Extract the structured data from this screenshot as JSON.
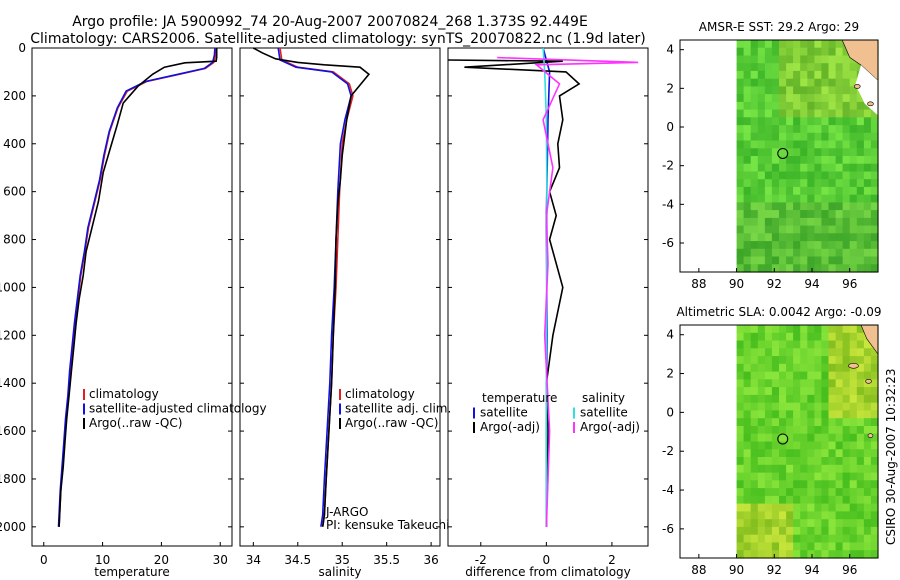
{
  "header": {
    "line1": "Argo profile: JA 5900992_74 20-Aug-2007 20070824_268 1.373S 92.449E",
    "line2": "Climatology: CARS2006. Satellite-adjusted climatology: synTS_20070822.nc (1.9d later)"
  },
  "credit": "CSIRO 30-Aug-2007 10:32:23",
  "colors": {
    "red": "#e02020",
    "blue": "#1010e0",
    "black": "#000000",
    "magenta": "#ff33ff",
    "cyan": "#33dddd"
  },
  "chart_data": [
    {
      "type": "line",
      "xlabel": "temperature",
      "ylabel": "",
      "xlim": [
        -2,
        32
      ],
      "ylim": [
        2080,
        0
      ],
      "xticks": [
        "0",
        "10",
        "20",
        "30"
      ],
      "yticks": [
        "0",
        "200",
        "400",
        "600",
        "800",
        "1000",
        "1200",
        "1400",
        "1600",
        "1800",
        "2000"
      ],
      "legend": [
        "climatology",
        "satellite-adjusted climatology",
        "Argo(..raw -QC)"
      ],
      "series": [
        {
          "name": "climatology",
          "color": "#e02020",
          "x": [
            29.3,
            29.2,
            28.9,
            27.5,
            23,
            17.5,
            14.2,
            12.6,
            11.2,
            10.3,
            9.6,
            8.6,
            7.6,
            7.0,
            6.3,
            5.8,
            5.3,
            4.9,
            4.5,
            4.2,
            3.8,
            3.5,
            3.2,
            2.9,
            2.6
          ],
          "y": [
            0,
            30,
            60,
            85,
            110,
            140,
            180,
            250,
            350,
            450,
            550,
            650,
            750,
            850,
            950,
            1050,
            1150,
            1250,
            1350,
            1450,
            1550,
            1650,
            1750,
            1850,
            2000
          ]
        },
        {
          "name": "satellite-adjusted climatology",
          "color": "#1010e0",
          "x": [
            29.1,
            29.0,
            28.7,
            27.3,
            22.8,
            17.3,
            14.0,
            12.5,
            11.1,
            10.2,
            9.5,
            8.5,
            7.5,
            6.9,
            6.2,
            5.7,
            5.2,
            4.8,
            4.4,
            4.1,
            3.7,
            3.4,
            3.1,
            2.8,
            2.5
          ],
          "y": [
            0,
            30,
            60,
            85,
            110,
            140,
            180,
            250,
            350,
            450,
            550,
            650,
            750,
            850,
            950,
            1050,
            1150,
            1250,
            1350,
            1450,
            1550,
            1650,
            1750,
            1850,
            2000
          ]
        },
        {
          "name": "Argo(..raw -QC)",
          "color": "#000000",
          "x": [
            29.4,
            29.4,
            29.3,
            24,
            20.5,
            18.5,
            16,
            13.5,
            12.5,
            11.3,
            10.1,
            9.3,
            8.2,
            7.2,
            6.7,
            6.0,
            5.5,
            5.1,
            4.7,
            4.3,
            3.9,
            3.6,
            3.3,
            2.9,
            2.6
          ],
          "y": [
            0,
            40,
            55,
            62,
            80,
            110,
            160,
            230,
            320,
            420,
            520,
            640,
            750,
            850,
            950,
            1050,
            1150,
            1250,
            1350,
            1450,
            1550,
            1650,
            1750,
            1850,
            2000
          ]
        }
      ]
    },
    {
      "type": "line",
      "xlabel": "salinity",
      "xlim": [
        33.85,
        36.1
      ],
      "ylim": [
        2080,
        0
      ],
      "xticks": [
        "34",
        "34.5",
        "35",
        "35.5",
        "36"
      ],
      "legend": [
        "climatology",
        "satellite adj. clim.",
        "Argo(..raw -QC)"
      ],
      "annotation": [
        "J-ARGO",
        "PI: kensuke Takeuchi"
      ],
      "series": [
        {
          "name": "climatology",
          "color": "#e02020",
          "x": [
            34.3,
            34.32,
            34.5,
            34.9,
            35.08,
            35.12,
            35.05,
            35.0,
            34.97,
            34.95,
            34.93,
            34.9,
            34.88,
            34.85,
            34.82,
            34.8,
            34.78
          ],
          "y": [
            0,
            50,
            80,
            100,
            150,
            200,
            300,
            400,
            600,
            800,
            1000,
            1200,
            1400,
            1600,
            1800,
            1950,
            2000
          ]
        },
        {
          "name": "satellite adj. clim.",
          "color": "#1010e0",
          "x": [
            34.28,
            34.3,
            34.48,
            34.88,
            35.06,
            35.1,
            35.03,
            34.98,
            34.95,
            34.93,
            34.91,
            34.88,
            34.86,
            34.83,
            34.8,
            34.78,
            34.76
          ],
          "y": [
            0,
            50,
            80,
            100,
            150,
            200,
            300,
            400,
            600,
            800,
            1000,
            1200,
            1400,
            1600,
            1800,
            1950,
            2000
          ]
        },
        {
          "name": "Argo(..raw -QC)",
          "color": "#000000",
          "x": [
            34.0,
            34.1,
            34.25,
            34.5,
            34.8,
            35.2,
            35.3,
            35.1,
            35.05,
            35.0,
            34.98,
            34.95,
            34.93,
            34.92,
            34.9,
            34.88,
            34.85,
            34.82,
            34.8,
            34.78
          ],
          "y": [
            0,
            20,
            45,
            60,
            70,
            80,
            110,
            200,
            300,
            450,
            550,
            650,
            800,
            1000,
            1200,
            1400,
            1600,
            1800,
            1950,
            2000
          ]
        }
      ]
    },
    {
      "type": "line",
      "xlabel": "difference from climatology",
      "xlim": [
        -3,
        3.1
      ],
      "ylim": [
        2080,
        0
      ],
      "xticks": [
        "-2",
        "0",
        "2"
      ],
      "legend": [
        "temperature",
        "satellite",
        "Argo(-adj)",
        "salinity",
        "satellite",
        "Argo(-adj)"
      ],
      "series": [
        {
          "name": "temperature satellite",
          "color": "#1010e0",
          "x": [
            -0.1,
            0.1,
            0.05,
            0.0,
            0.02,
            0.0,
            0.0
          ],
          "y": [
            0,
            100,
            300,
            700,
            1200,
            1600,
            2000
          ]
        },
        {
          "name": "temperature Argo(-adj)",
          "color": "#000000",
          "x": [
            -3,
            0.5,
            -2.5,
            0.6,
            1.0,
            0.4,
            0.5,
            0.35,
            0.4,
            0.1,
            0.3,
            0.1,
            0.5,
            0.2,
            0.0,
            0.05,
            0.0
          ],
          "y": [
            50,
            55,
            80,
            100,
            150,
            200,
            300,
            400,
            500,
            600,
            700,
            800,
            1000,
            1200,
            1400,
            1600,
            2000
          ]
        },
        {
          "name": "salinity satellite",
          "color": "#33dddd",
          "x": [
            -0.1,
            -0.05,
            0.0,
            0.02,
            0.0,
            0.0,
            0.0
          ],
          "y": [
            0,
            100,
            300,
            700,
            1200,
            1600,
            2000
          ]
        },
        {
          "name": "salinity Argo(-adj)",
          "color": "#ff33ff",
          "x": [
            -1.5,
            2.8,
            -0.3,
            0.4,
            -0.1,
            0.2,
            0.0,
            0.05,
            -0.05,
            0.1,
            0.0
          ],
          "y": [
            40,
            60,
            70,
            150,
            300,
            500,
            700,
            900,
            1200,
            1600,
            2000
          ]
        }
      ]
    },
    {
      "type": "heatmap",
      "title": "AMSR-E SST: 29.2  Argo: 29",
      "xticks": [
        "88",
        "90",
        "92",
        "94",
        "96"
      ],
      "yticks": [
        "4",
        "2",
        "0",
        "-2",
        "-4",
        "-6"
      ],
      "xlim": [
        87,
        97.5
      ],
      "ylim": [
        -7.5,
        4.5
      ],
      "marker": {
        "lon": 92.45,
        "lat": -1.37
      }
    },
    {
      "type": "heatmap",
      "title": "Altimetric SLA: 0.0042  Argo: -0.09",
      "xticks": [
        "88",
        "90",
        "92",
        "94",
        "96"
      ],
      "yticks": [
        "4",
        "2",
        "0",
        "-2",
        "-4",
        "-6"
      ],
      "xlim": [
        87,
        97.5
      ],
      "ylim": [
        -7.5,
        4.5
      ],
      "marker": {
        "lon": 92.45,
        "lat": -1.37
      }
    }
  ]
}
